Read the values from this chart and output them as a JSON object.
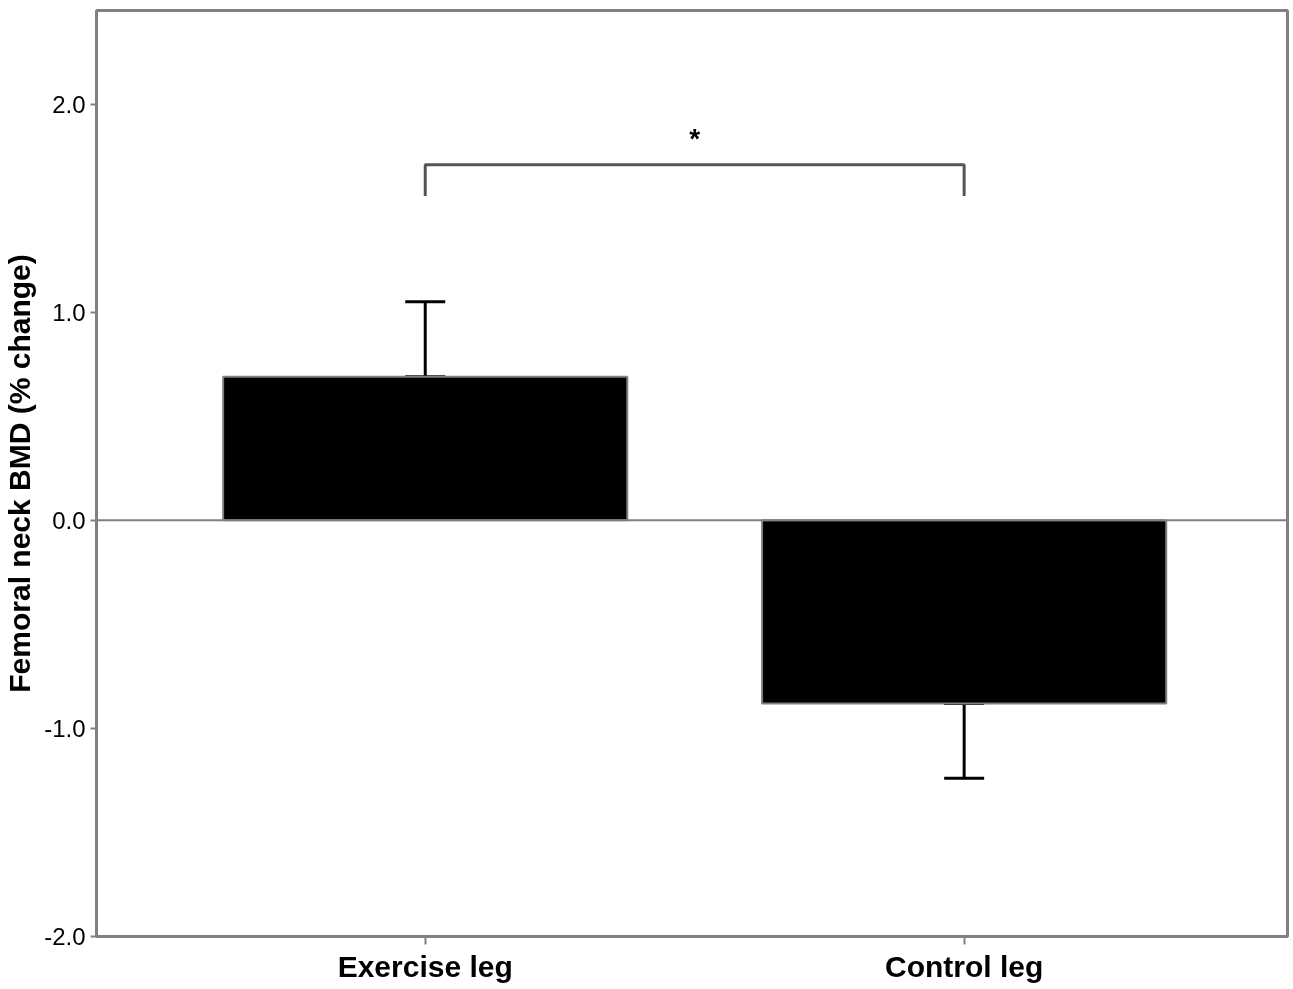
{
  "chart_data": {
    "type": "bar",
    "ylabel": "Femoral neck BMD (% change)",
    "categories": [
      "Exercise leg",
      "Control leg"
    ],
    "values": [
      0.69,
      -0.88
    ],
    "color": "#000000",
    "errors": [
      [
        0.69,
        1.05
      ],
      [
        -1.24,
        -0.88
      ]
    ],
    "ylim": [
      -2.0,
      2.45
    ],
    "yticks": [
      {
        "value": -2,
        "label": "-2.0"
      },
      {
        "value": -1,
        "label": "-1.0"
      },
      {
        "value": 0,
        "label": "0.0"
      },
      {
        "value": 1,
        "label": "1.0"
      },
      {
        "value": 2,
        "label": "2.0"
      }
    ],
    "ref_lines": [
      {
        "axis": "y",
        "value": 0,
        "label": null,
        "color": "#808080"
      }
    ],
    "annotations": [
      "*"
    ],
    "grid": false
  }
}
